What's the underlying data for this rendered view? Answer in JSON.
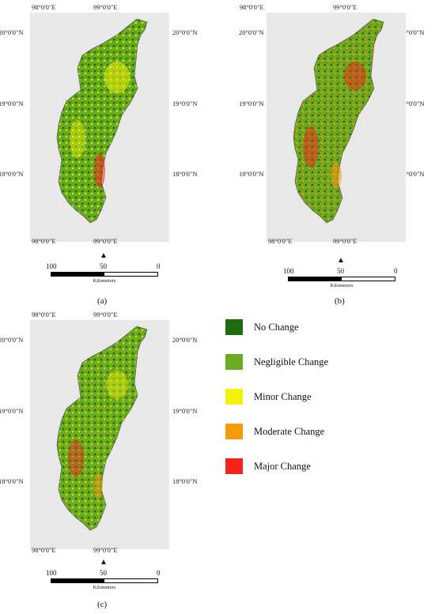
{
  "coords": {
    "lon_left": "98°0'0\"E",
    "lon_right": "99°0'0\"E",
    "lat_20": "20°0'0\"N",
    "lat_19": "19°0'0\"N",
    "lat_18": "18°0'0\"N"
  },
  "scale": {
    "left_value": "100",
    "mid_value": "50",
    "right_value": "0",
    "unit": "Kilometers"
  },
  "panels": [
    {
      "caption": "(a)"
    },
    {
      "caption": "(b)"
    },
    {
      "caption": "(c)"
    }
  ],
  "legend": {
    "items": [
      {
        "label": "No Change",
        "color": "#1e6b12"
      },
      {
        "label": "Negligible Change",
        "color": "#6aab1f"
      },
      {
        "label": "Minor Change",
        "color": "#f5f20a"
      },
      {
        "label": "Moderate Change",
        "color": "#f59a0a"
      },
      {
        "label": "Major Change",
        "color": "#f2231a"
      }
    ]
  },
  "colors": {
    "background_land": "#e8e8e8",
    "province_base": "#6aab1f"
  }
}
